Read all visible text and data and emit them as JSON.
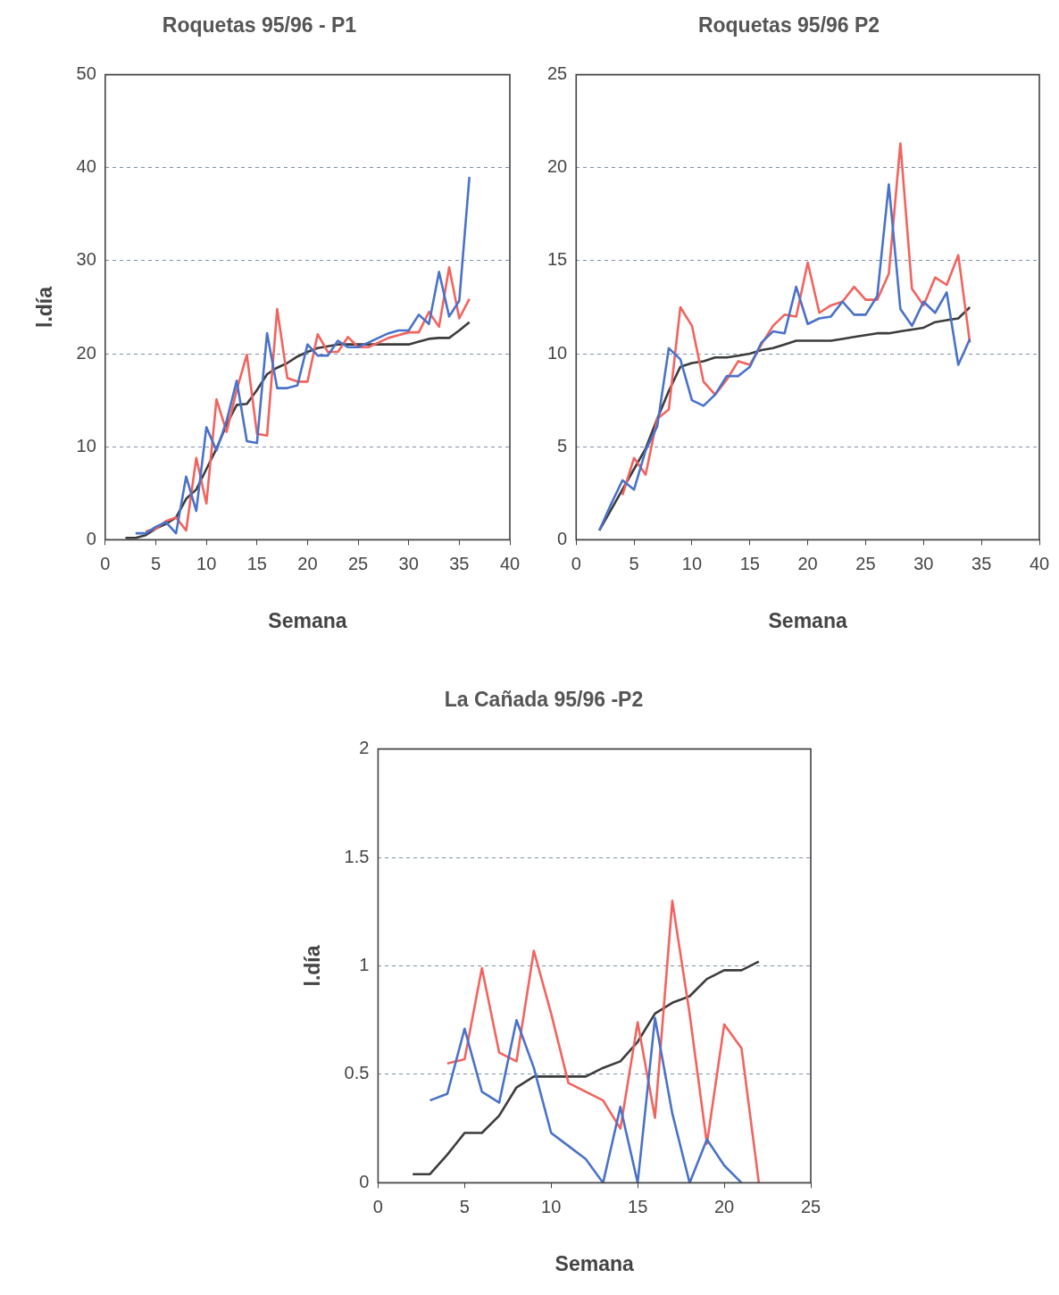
{
  "chart_data": [
    {
      "type": "line",
      "title": "Roquetas 95/96 - P1",
      "xlabel": "Semana",
      "ylabel": "l.día",
      "xlim": [
        0,
        40
      ],
      "xticks": [
        0,
        5,
        10,
        15,
        20,
        25,
        30,
        35,
        40
      ],
      "ylim": [
        0,
        50
      ],
      "yticks": [
        0,
        10,
        20,
        30,
        40,
        50
      ],
      "grid": "y",
      "series": [
        {
          "color": "#4a72c8",
          "x": [
            3,
            4,
            5,
            6,
            7,
            8,
            9,
            10,
            11,
            12,
            13,
            14,
            15,
            16,
            17,
            18,
            19,
            20,
            21,
            22,
            23,
            24,
            25,
            26,
            27,
            28,
            29,
            30,
            31,
            32,
            33,
            34,
            35,
            36
          ],
          "values": [
            0.7,
            0.7,
            1.4,
            1.9,
            0.7,
            6.8,
            3.1,
            12.1,
            9.6,
            12.8,
            17.1,
            10.6,
            10.4,
            22.2,
            16.3,
            16.3,
            16.6,
            21.0,
            19.8,
            19.8,
            21.4,
            20.7,
            20.7,
            21.2,
            21.7,
            22.2,
            22.5,
            22.5,
            24.2,
            23.2,
            28.8,
            24.0,
            25.7,
            39.0
          ]
        },
        {
          "color": "#f2635e",
          "x": [
            4,
            5,
            6,
            7,
            8,
            9,
            10,
            11,
            12,
            13,
            14,
            15,
            16,
            17,
            18,
            19,
            20,
            21,
            22,
            23,
            24,
            25,
            26,
            27,
            28,
            29,
            30,
            31,
            32,
            33,
            34,
            35,
            36
          ],
          "values": [
            0.9,
            1.2,
            2.0,
            2.4,
            1.0,
            8.8,
            3.9,
            15.1,
            11.6,
            16.1,
            19.9,
            11.4,
            11.2,
            24.8,
            17.4,
            17.0,
            17.0,
            22.1,
            20.2,
            20.2,
            21.8,
            20.7,
            20.7,
            21.2,
            21.7,
            22.0,
            22.3,
            22.3,
            24.5,
            22.9,
            29.3,
            23.8,
            25.9
          ]
        },
        {
          "color": "#3c3c3c",
          "x": [
            2,
            3,
            4,
            5,
            6,
            7,
            8,
            9,
            10,
            11,
            12,
            13,
            14,
            15,
            16,
            17,
            18,
            19,
            20,
            21,
            22,
            23,
            24,
            25,
            26,
            27,
            28,
            29,
            30,
            31,
            32,
            33,
            34,
            35,
            36
          ],
          "values": [
            0.2,
            0.2,
            0.5,
            1.2,
            1.7,
            2.4,
            4.4,
            5.4,
            7.6,
            9.8,
            12.4,
            14.5,
            14.6,
            16.1,
            17.8,
            18.5,
            19.0,
            19.7,
            20.2,
            20.6,
            20.8,
            21.0,
            21.0,
            21.0,
            21.0,
            21.0,
            21.0,
            21.0,
            21.0,
            21.3,
            21.6,
            21.7,
            21.7,
            22.5,
            23.4
          ]
        }
      ]
    },
    {
      "type": "line",
      "title": "Roquetas 95/96 P2",
      "xlabel": "Semana",
      "xlim": [
        0,
        40
      ],
      "xticks": [
        0,
        5,
        10,
        15,
        20,
        25,
        30,
        35,
        40
      ],
      "ylim": [
        0,
        25
      ],
      "yticks": [
        0,
        5,
        10,
        15,
        20,
        25
      ],
      "grid": "y",
      "series": [
        {
          "color": "#4a72c8",
          "x": [
            2,
            3,
            4,
            5,
            6,
            7,
            8,
            9,
            10,
            11,
            12,
            13,
            14,
            15,
            16,
            17,
            18,
            19,
            20,
            21,
            22,
            23,
            24,
            25,
            26,
            27,
            28,
            29,
            30,
            31,
            32,
            33,
            34
          ],
          "values": [
            0.5,
            1.9,
            3.2,
            2.7,
            4.8,
            6.1,
            10.3,
            9.7,
            7.5,
            7.2,
            7.8,
            8.8,
            8.8,
            9.3,
            10.6,
            11.2,
            11.1,
            13.6,
            11.6,
            11.9,
            12.0,
            12.8,
            12.1,
            12.1,
            13.1,
            19.1,
            12.4,
            11.5,
            12.8,
            12.2,
            13.3,
            9.4,
            10.8
          ]
        },
        {
          "color": "#f2635e",
          "x": [
            4,
            5,
            6,
            7,
            8,
            9,
            10,
            11,
            12,
            13,
            14,
            15,
            16,
            17,
            18,
            19,
            20,
            21,
            22,
            23,
            24,
            25,
            26,
            27,
            28,
            29,
            30,
            31,
            32,
            33,
            34
          ],
          "values": [
            2.4,
            4.4,
            3.5,
            6.5,
            7.0,
            12.5,
            11.5,
            8.5,
            7.8,
            8.6,
            9.6,
            9.4,
            10.5,
            11.5,
            12.1,
            12.0,
            14.9,
            12.2,
            12.6,
            12.8,
            13.6,
            12.9,
            12.9,
            14.3,
            21.3,
            13.5,
            12.6,
            14.1,
            13.7,
            15.3,
            10.6
          ]
        },
        {
          "color": "#3c3c3c",
          "x": [
            2,
            3,
            4,
            5,
            6,
            7,
            8,
            9,
            10,
            11,
            12,
            13,
            14,
            15,
            16,
            17,
            18,
            19,
            20,
            21,
            22,
            23,
            24,
            25,
            26,
            27,
            28,
            29,
            30,
            31,
            32,
            33,
            34
          ],
          "values": [
            0.5,
            1.6,
            2.7,
            3.8,
            4.9,
            6.5,
            8.0,
            9.3,
            9.5,
            9.6,
            9.8,
            9.8,
            9.9,
            10.0,
            10.2,
            10.3,
            10.5,
            10.7,
            10.7,
            10.7,
            10.7,
            10.8,
            10.9,
            11.0,
            11.1,
            11.1,
            11.2,
            11.3,
            11.4,
            11.7,
            11.8,
            11.9,
            12.5
          ]
        }
      ]
    },
    {
      "type": "line",
      "title": "La Cañada 95/96 -P2",
      "xlabel": "Semana",
      "ylabel": "l.día",
      "xlim": [
        0,
        25
      ],
      "xticks": [
        0,
        5,
        10,
        15,
        20,
        25
      ],
      "ylim": [
        0,
        2
      ],
      "yticks": [
        0,
        0.5,
        1,
        1.5,
        2
      ],
      "grid": "y",
      "series": [
        {
          "color": "#4a72c8",
          "x": [
            3,
            4,
            5,
            6,
            7,
            8,
            9,
            10,
            11,
            12,
            13,
            14,
            15,
            16,
            17,
            18,
            19,
            20,
            21
          ],
          "values": [
            0.38,
            0.41,
            0.71,
            0.42,
            0.37,
            0.75,
            0.53,
            0.23,
            0.17,
            0.11,
            0,
            0.35,
            0,
            0.76,
            0.32,
            0,
            0.2,
            0.08,
            0
          ]
        },
        {
          "color": "#f2635e",
          "x": [
            4,
            5,
            6,
            7,
            8,
            9,
            10,
            11,
            12,
            13,
            14,
            15,
            16,
            17,
            18,
            19,
            20,
            21,
            22
          ],
          "values": [
            0.55,
            0.57,
            0.99,
            0.6,
            0.56,
            1.07,
            0.78,
            0.46,
            0.42,
            0.38,
            0.25,
            0.74,
            0.3,
            1.3,
            0.78,
            0.18,
            0.73,
            0.62,
            0
          ]
        },
        {
          "color": "#3c3c3c",
          "x": [
            2,
            3,
            4,
            5,
            6,
            7,
            8,
            9,
            10,
            11,
            12,
            13,
            14,
            15,
            16,
            17,
            18,
            19,
            20,
            21,
            22
          ],
          "values": [
            0.04,
            0.04,
            0.13,
            0.23,
            0.23,
            0.31,
            0.44,
            0.49,
            0.49,
            0.49,
            0.49,
            0.53,
            0.56,
            0.65,
            0.78,
            0.83,
            0.86,
            0.94,
            0.98,
            0.98,
            1.02
          ]
        }
      ]
    }
  ]
}
